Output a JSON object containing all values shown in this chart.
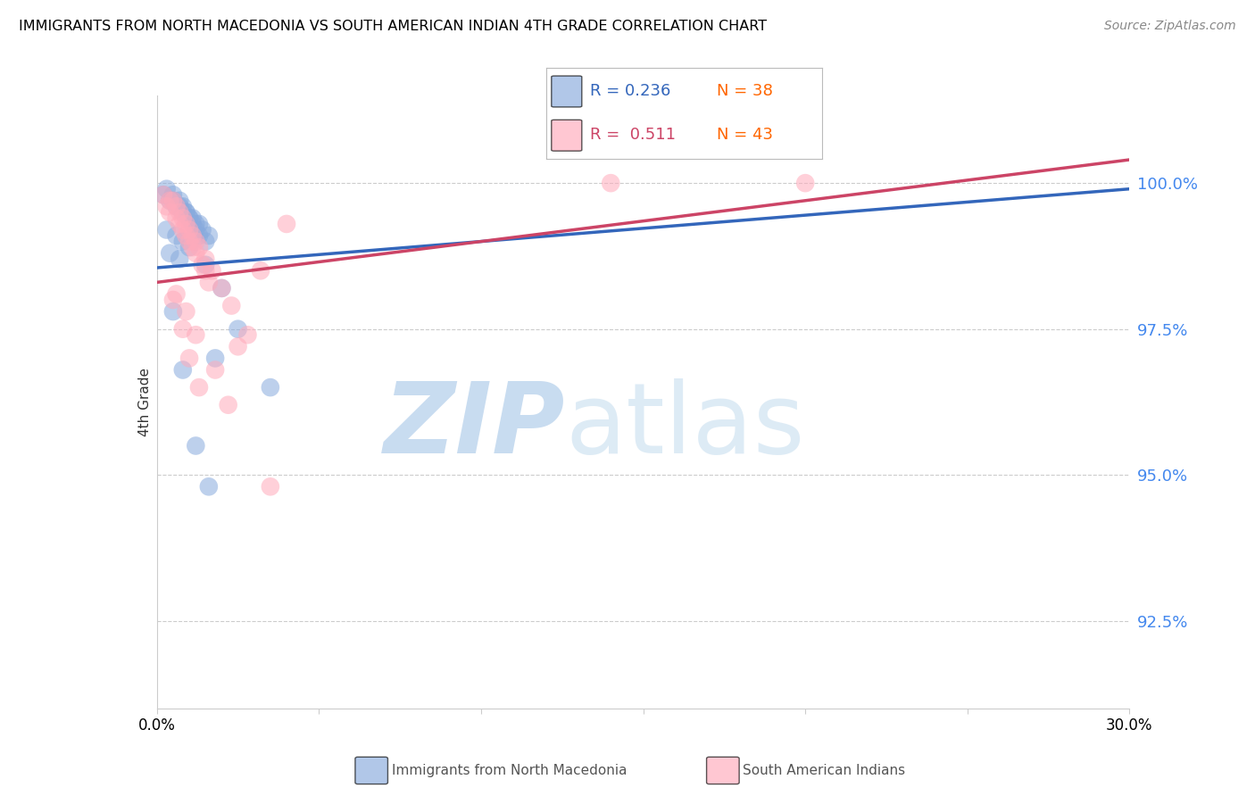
{
  "title": "IMMIGRANTS FROM NORTH MACEDONIA VS SOUTH AMERICAN INDIAN 4TH GRADE CORRELATION CHART",
  "source": "Source: ZipAtlas.com",
  "ylabel": "4th Grade",
  "y_ticks": [
    92.5,
    95.0,
    97.5,
    100.0
  ],
  "y_labels": [
    "92.5%",
    "95.0%",
    "97.5%",
    "100.0%"
  ],
  "xlim": [
    0.0,
    30.0
  ],
  "ylim": [
    91.0,
    101.5
  ],
  "blue_label": "Immigrants from North Macedonia",
  "pink_label": "South American Indians",
  "blue_R": 0.236,
  "blue_N": 38,
  "pink_R": 0.511,
  "pink_N": 43,
  "blue_color": "#88AADD",
  "pink_color": "#FFAABB",
  "blue_line_color": "#3366BB",
  "pink_line_color": "#CC4466",
  "legend_N_color": "#FF6600",
  "blue_x": [
    0.3,
    0.5,
    0.7,
    0.8,
    0.9,
    1.0,
    1.1,
    1.2,
    1.3,
    1.5,
    0.2,
    0.4,
    0.6,
    0.8,
    1.0,
    1.2,
    1.4,
    1.6,
    0.5,
    0.7,
    0.9,
    1.1,
    1.3,
    0.3,
    0.6,
    0.8,
    1.0,
    0.4,
    0.7,
    1.5,
    2.0,
    2.5,
    3.5,
    1.8,
    0.5,
    0.8,
    1.2,
    1.6
  ],
  "blue_y": [
    99.9,
    99.8,
    99.7,
    99.6,
    99.5,
    99.4,
    99.3,
    99.2,
    99.1,
    99.0,
    99.8,
    99.7,
    99.6,
    99.5,
    99.4,
    99.3,
    99.2,
    99.1,
    99.7,
    99.6,
    99.5,
    99.4,
    99.3,
    99.2,
    99.1,
    99.0,
    98.9,
    98.8,
    98.7,
    98.6,
    98.2,
    97.5,
    96.5,
    97.0,
    97.8,
    96.8,
    95.5,
    94.8
  ],
  "pink_x": [
    0.2,
    0.4,
    0.5,
    0.6,
    0.7,
    0.8,
    0.9,
    1.0,
    1.1,
    1.2,
    1.3,
    1.5,
    1.7,
    2.0,
    2.3,
    2.8,
    0.3,
    0.6,
    0.8,
    1.0,
    1.2,
    1.5,
    0.4,
    0.7,
    0.9,
    1.1,
    1.4,
    1.6,
    2.5,
    3.2,
    4.0,
    0.5,
    0.8,
    1.0,
    1.3,
    3.5,
    14.0,
    20.0,
    0.6,
    0.9,
    1.2,
    1.8,
    2.2
  ],
  "pink_y": [
    99.8,
    99.7,
    99.7,
    99.6,
    99.5,
    99.4,
    99.3,
    99.2,
    99.1,
    99.0,
    98.9,
    98.7,
    98.5,
    98.2,
    97.9,
    97.4,
    99.6,
    99.4,
    99.2,
    99.0,
    98.8,
    98.5,
    99.5,
    99.3,
    99.1,
    98.9,
    98.6,
    98.3,
    97.2,
    98.5,
    99.3,
    98.0,
    97.5,
    97.0,
    96.5,
    94.8,
    100.0,
    100.0,
    98.1,
    97.8,
    97.4,
    96.8,
    96.2
  ],
  "blue_trend_x0": 0.0,
  "blue_trend_y0": 98.55,
  "blue_trend_x1": 30.0,
  "blue_trend_y1": 99.9,
  "pink_trend_x0": 0.0,
  "pink_trend_y0": 98.3,
  "pink_trend_x1": 30.0,
  "pink_trend_y1": 100.4
}
